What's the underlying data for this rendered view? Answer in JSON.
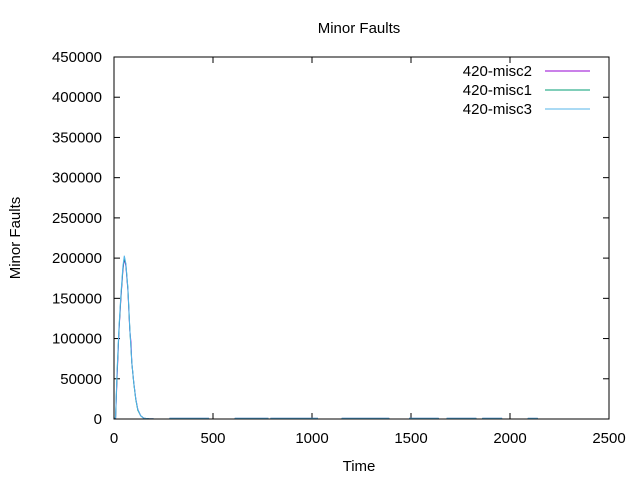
{
  "chart_data": {
    "type": "line",
    "title": "Minor Faults",
    "xlabel": "Time",
    "ylabel": "Minor Faults",
    "xlim": [
      0,
      2500
    ],
    "ylim": [
      0,
      450000
    ],
    "x_ticks": [
      0,
      500,
      1000,
      1500,
      2000,
      2500
    ],
    "y_ticks": [
      0,
      50000,
      100000,
      150000,
      200000,
      250000,
      300000,
      350000,
      400000,
      450000
    ],
    "grid": false,
    "legend_position": "top-right",
    "series": [
      {
        "name": "420-misc2",
        "color": "#9400d3",
        "points": [
          [
            0,
            0
          ],
          [
            8,
            1000
          ],
          [
            15,
            50000
          ],
          [
            25,
            110000
          ],
          [
            35,
            150000
          ],
          [
            45,
            185000
          ],
          [
            52,
            200000
          ],
          [
            60,
            190000
          ],
          [
            70,
            160000
          ],
          [
            80,
            110000
          ],
          [
            86,
            95000
          ],
          [
            90,
            70000
          ],
          [
            100,
            45000
          ],
          [
            110,
            25000
          ],
          [
            120,
            12000
          ],
          [
            135,
            4000
          ],
          [
            150,
            1000
          ],
          [
            175,
            300
          ],
          [
            200,
            100
          ]
        ],
        "flat_segments": [
          [
            280,
            480
          ],
          [
            610,
            780
          ],
          [
            790,
            1030
          ],
          [
            1150,
            1390
          ],
          [
            1490,
            1640
          ],
          [
            1680,
            1830
          ],
          [
            1860,
            1960
          ],
          [
            2090,
            2140
          ]
        ]
      },
      {
        "name": "420-misc1",
        "color": "#009e73",
        "points": [
          [
            0,
            0
          ],
          [
            8,
            1500
          ],
          [
            15,
            55000
          ],
          [
            25,
            112000
          ],
          [
            35,
            152000
          ],
          [
            45,
            187000
          ],
          [
            52,
            201000
          ],
          [
            60,
            192000
          ],
          [
            70,
            162000
          ],
          [
            80,
            112000
          ],
          [
            90,
            70000
          ],
          [
            100,
            44000
          ],
          [
            110,
            24000
          ],
          [
            120,
            11000
          ],
          [
            135,
            4000
          ],
          [
            150,
            1000
          ],
          [
            175,
            300
          ],
          [
            200,
            100
          ]
        ],
        "flat_segments": [
          [
            280,
            480
          ],
          [
            610,
            780
          ],
          [
            790,
            1030
          ],
          [
            1150,
            1390
          ],
          [
            1490,
            1640
          ],
          [
            1680,
            1830
          ],
          [
            1860,
            1960
          ],
          [
            2090,
            2140
          ]
        ]
      },
      {
        "name": "420-misc3",
        "color": "#56b4e9",
        "points": [
          [
            0,
            0
          ],
          [
            8,
            2000
          ],
          [
            15,
            58000
          ],
          [
            25,
            115000
          ],
          [
            35,
            155000
          ],
          [
            45,
            190000
          ],
          [
            52,
            203000
          ],
          [
            60,
            193000
          ],
          [
            70,
            163000
          ],
          [
            80,
            113000
          ],
          [
            90,
            71000
          ],
          [
            100,
            45000
          ],
          [
            110,
            25000
          ],
          [
            120,
            12000
          ],
          [
            135,
            4000
          ],
          [
            150,
            1000
          ],
          [
            175,
            300
          ],
          [
            200,
            100
          ]
        ],
        "flat_segments": [
          [
            280,
            480
          ],
          [
            610,
            780
          ],
          [
            790,
            1030
          ],
          [
            1150,
            1390
          ],
          [
            1490,
            1640
          ],
          [
            1680,
            1830
          ],
          [
            1860,
            1960
          ],
          [
            2090,
            2140
          ]
        ]
      }
    ]
  }
}
